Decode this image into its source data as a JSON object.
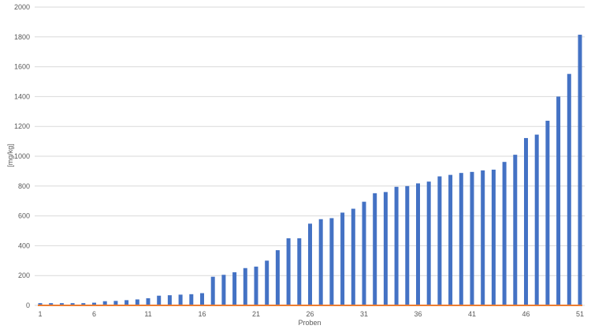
{
  "chart_data": {
    "type": "bar",
    "xlabel": "Proben",
    "ylabel": "[mg/kg]",
    "ylim": [
      0,
      2000
    ],
    "yticks": [
      0,
      200,
      400,
      600,
      800,
      1000,
      1200,
      1400,
      1600,
      1800,
      2000
    ],
    "xticks": [
      1,
      6,
      11,
      16,
      21,
      26,
      31,
      36,
      41,
      46,
      51
    ],
    "grid": "horizontal",
    "colors": {
      "bars": "#4472c4",
      "baseline": "#ed7d31",
      "grid": "#d9d9d9"
    },
    "x": [
      1,
      2,
      3,
      4,
      5,
      6,
      7,
      8,
      9,
      10,
      11,
      12,
      13,
      14,
      15,
      16,
      17,
      18,
      19,
      20,
      21,
      22,
      23,
      24,
      25,
      26,
      27,
      28,
      29,
      30,
      31,
      32,
      33,
      34,
      35,
      36,
      37,
      38,
      39,
      40,
      41,
      42,
      43,
      44,
      45,
      46,
      47,
      48,
      49,
      50,
      51
    ],
    "values": [
      15,
      15,
      15,
      15,
      15,
      18,
      28,
      30,
      35,
      40,
      48,
      65,
      68,
      72,
      75,
      82,
      192,
      205,
      222,
      250,
      260,
      300,
      370,
      450,
      450,
      548,
      578,
      585,
      622,
      648,
      695,
      752,
      760,
      795,
      800,
      818,
      830,
      865,
      875,
      888,
      895,
      905,
      910,
      962,
      1010,
      1122,
      1145,
      1238,
      1400,
      1552,
      1815
    ],
    "baseline_value": 0
  }
}
